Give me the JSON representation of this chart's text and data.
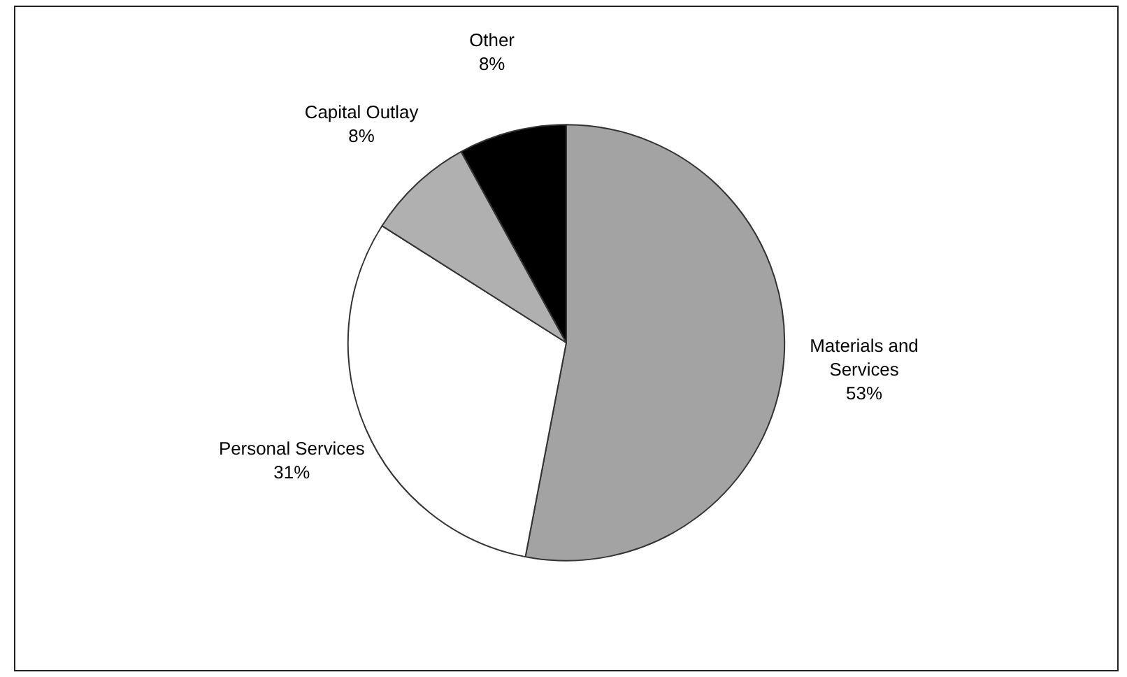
{
  "chart_data": {
    "type": "pie",
    "categories": [
      "Materials and Services",
      "Personal Services",
      "Capital Outlay",
      "Other"
    ],
    "values": [
      53,
      31,
      8,
      8
    ],
    "colors": [
      "#a3a3a3",
      "#ffffff",
      "#b0b0b0",
      "#000000"
    ],
    "value_labels": [
      "53%",
      "31%",
      "8%",
      "8%"
    ],
    "legend": false
  }
}
